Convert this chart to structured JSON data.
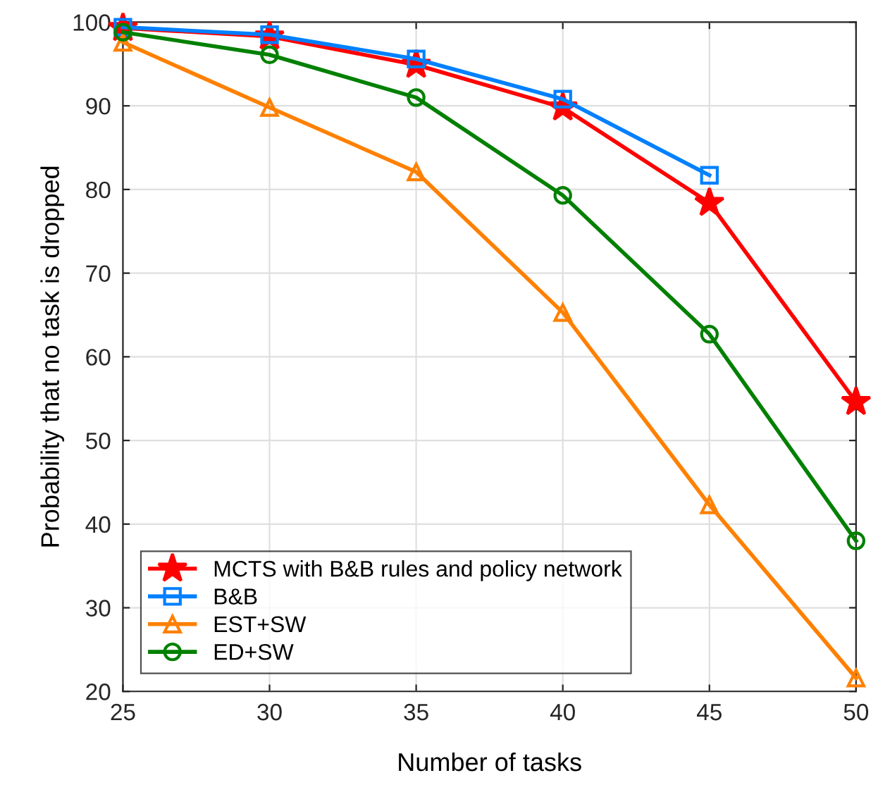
{
  "chart_data": {
    "type": "line",
    "xlabel": "Number of tasks",
    "ylabel": "Probability that no task is dropped",
    "x": [
      25,
      30,
      35,
      40,
      45,
      50
    ],
    "series": [
      {
        "name": "MCTS with B&B rules and policy network",
        "color": "#ff0000",
        "marker": "star",
        "values": [
          99.3,
          98.3,
          94.9,
          89.8,
          78.4,
          54.6
        ]
      },
      {
        "name": "B&B",
        "color": "#0080ff",
        "marker": "square",
        "values": [
          99.4,
          98.5,
          95.6,
          90.8,
          81.7,
          null
        ]
      },
      {
        "name": "EST+SW",
        "color": "#ff8000",
        "marker": "triangle",
        "values": [
          97.6,
          89.8,
          82.1,
          65.3,
          42.3,
          21.6
        ]
      },
      {
        "name": "ED+SW",
        "color": "#008000",
        "marker": "circle",
        "values": [
          98.8,
          96.1,
          91.0,
          79.3,
          62.7,
          38.0
        ]
      }
    ],
    "xlim": [
      25,
      50
    ],
    "xticks": [
      25,
      30,
      35,
      40,
      45,
      50
    ],
    "ylim": [
      20,
      100
    ],
    "yticks": [
      20,
      30,
      40,
      50,
      60,
      70,
      80,
      90,
      100
    ],
    "grid": true,
    "legend": "bottom left"
  }
}
